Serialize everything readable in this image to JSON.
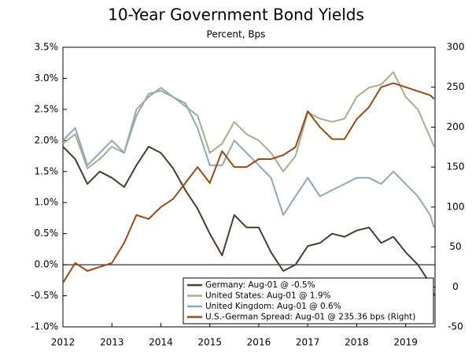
{
  "chart_data": {
    "type": "line",
    "title": "10-Year Government Bond Yields",
    "subtitle": "Percent, Bps",
    "x": [
      2012.0,
      2012.25,
      2012.5,
      2012.75,
      2013.0,
      2013.25,
      2013.5,
      2013.75,
      2014.0,
      2014.25,
      2014.5,
      2014.75,
      2015.0,
      2015.25,
      2015.5,
      2015.75,
      2016.0,
      2016.25,
      2016.5,
      2016.75,
      2017.0,
      2017.25,
      2017.5,
      2017.75,
      2018.0,
      2018.25,
      2018.5,
      2018.75,
      2019.0,
      2019.25,
      2019.5,
      2019.58
    ],
    "series": [
      {
        "name": "Germany: Aug-01 @ -0.5%",
        "color": "#4d3b2f",
        "values": [
          1.9,
          1.7,
          1.3,
          1.5,
          1.4,
          1.25,
          1.6,
          1.9,
          1.8,
          1.55,
          1.2,
          0.9,
          0.5,
          0.15,
          0.8,
          0.6,
          0.6,
          0.2,
          -0.1,
          0.0,
          0.3,
          0.35,
          0.5,
          0.45,
          0.55,
          0.6,
          0.35,
          0.45,
          0.2,
          0.0,
          -0.3,
          -0.5
        ]
      },
      {
        "name": "United States: Aug-01 @ 1.9%",
        "color": "#a3b08a",
        "values": [
          1.95,
          2.1,
          1.55,
          1.7,
          1.9,
          1.8,
          2.5,
          2.7,
          2.85,
          2.7,
          2.55,
          2.4,
          1.8,
          1.95,
          2.3,
          2.1,
          2.0,
          1.8,
          1.5,
          1.75,
          2.45,
          2.35,
          2.3,
          2.35,
          2.7,
          2.85,
          2.9,
          3.1,
          2.7,
          2.5,
          2.05,
          1.9
        ]
      },
      {
        "name": "United Kingdom: Aug-01 @ 0.6%",
        "color": "#8fa8bb",
        "values": [
          2.0,
          2.2,
          1.6,
          1.8,
          2.0,
          1.8,
          2.4,
          2.75,
          2.8,
          2.7,
          2.6,
          2.2,
          1.6,
          1.6,
          2.0,
          1.8,
          1.6,
          1.4,
          0.8,
          1.1,
          1.4,
          1.1,
          1.2,
          1.3,
          1.4,
          1.4,
          1.3,
          1.5,
          1.3,
          1.1,
          0.8,
          0.6
        ]
      },
      {
        "name": "U.S.-German Spread: Aug-01 @ 235.36 bps (Right)",
        "color": "#9c4a12",
        "axis": "y2",
        "values": [
          5,
          30,
          20,
          25,
          30,
          55,
          90,
          85,
          100,
          110,
          130,
          150,
          130,
          170,
          150,
          150,
          160,
          160,
          165,
          175,
          220,
          200,
          185,
          185,
          210,
          225,
          250,
          255,
          250,
          245,
          240,
          235.36
        ]
      }
    ],
    "xlim": [
      2012,
      2019.6
    ],
    "xticks": [
      2012,
      2013,
      2014,
      2015,
      2016,
      2017,
      2018,
      2019
    ],
    "ylim": [
      -1.0,
      3.5
    ],
    "yticks": [
      {
        "value": -1.0,
        "label": "-1.0%"
      },
      {
        "value": -0.5,
        "label": "-0.5%"
      },
      {
        "value": 0.0,
        "label": "0.0%"
      },
      {
        "value": 0.5,
        "label": "0.5%"
      },
      {
        "value": 1.0,
        "label": "1.0%"
      },
      {
        "value": 1.5,
        "label": "1.5%"
      },
      {
        "value": 2.0,
        "label": "2.0%"
      },
      {
        "value": 2.5,
        "label": "2.5%"
      },
      {
        "value": 3.0,
        "label": "3.0%"
      },
      {
        "value": 3.5,
        "label": "3.5%"
      }
    ],
    "y2lim": [
      -50,
      300
    ],
    "y2ticks": [
      -50,
      0,
      50,
      100,
      150,
      200,
      250,
      300
    ],
    "legend": "bottom-right"
  }
}
